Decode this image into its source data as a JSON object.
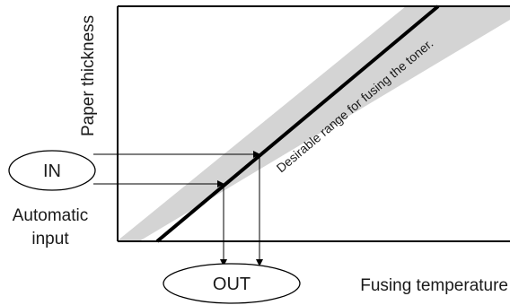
{
  "diagram": {
    "y_axis_label": "Paper thickness",
    "x_axis_label": "Fusing temperature",
    "band_label": "Desirable range for fusing the toner.",
    "input_node_label": "IN",
    "output_node_label": "OUT",
    "input_caption_line1": "Automatic",
    "input_caption_line2": "input",
    "colors": {
      "band": "#d4d4d4",
      "lines": "#000000"
    }
  }
}
